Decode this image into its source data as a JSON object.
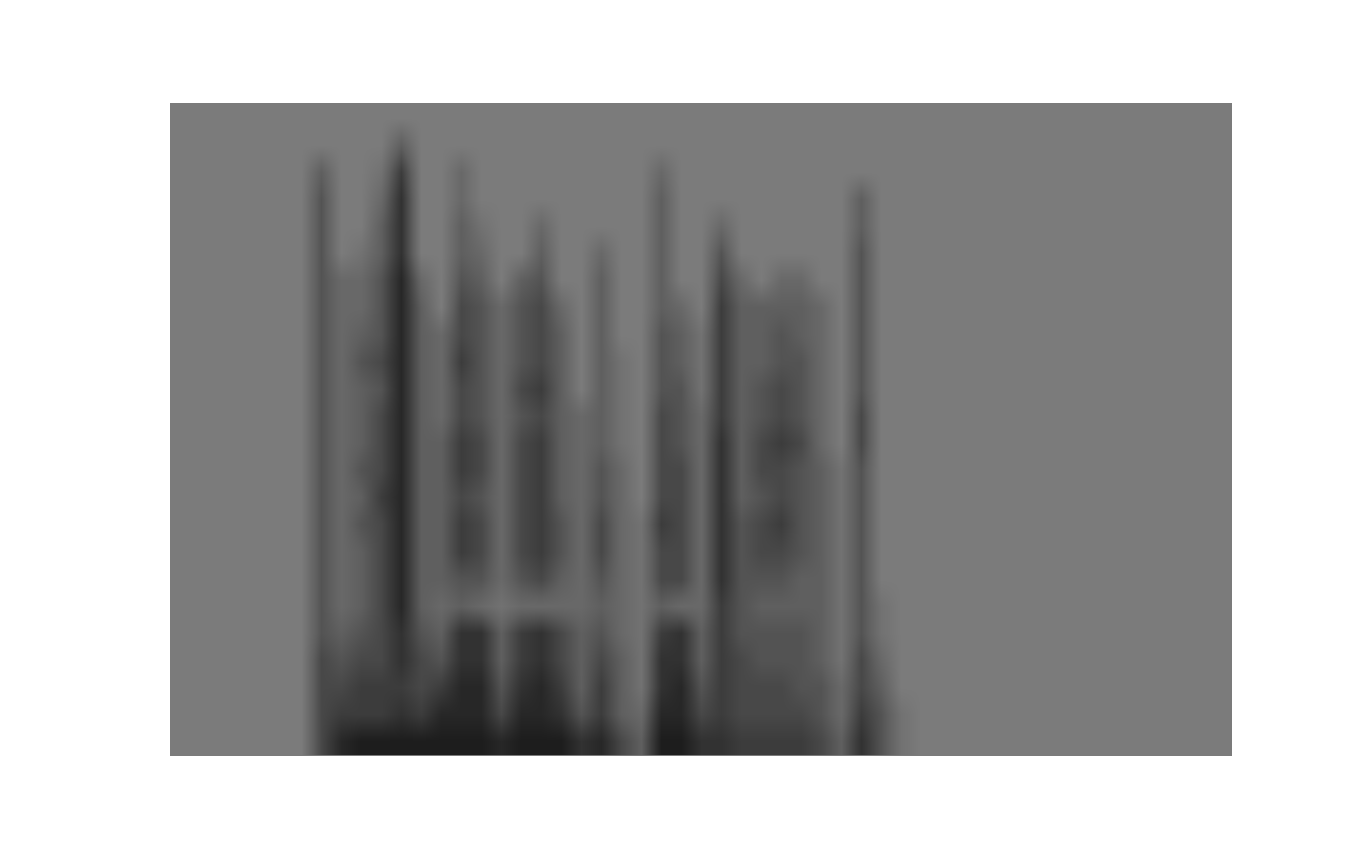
{
  "chart_data": {
    "type": "heatmap",
    "tick_labels": false,
    "xlim": [
      -0.5,
      52.5
    ],
    "ylim": [
      -0.5,
      23.5
    ],
    "zlim": [
      0,
      10
    ],
    "cells": [
      [
        0,
        0,
        0,
        0,
        0,
        0,
        0,
        5,
        8,
        9,
        9,
        9,
        9,
        9,
        9,
        9,
        8,
        9,
        9,
        9,
        7,
        8,
        5,
        3,
        9,
        9,
        7,
        7,
        6,
        6,
        6,
        6,
        5,
        3,
        7,
        4,
        1,
        0,
        0,
        0,
        0,
        0,
        0,
        0,
        0,
        0,
        0,
        0,
        0,
        0,
        0,
        0,
        0
      ],
      [
        0,
        0,
        0,
        0,
        0,
        0,
        0,
        5,
        6,
        6,
        6,
        7,
        6,
        8,
        8,
        8,
        5,
        8,
        8,
        7,
        4,
        6,
        3,
        2,
        8,
        8,
        5,
        6,
        5,
        5,
        5,
        5,
        4,
        2,
        6,
        4,
        1,
        0,
        0,
        0,
        0,
        0,
        0,
        0,
        0,
        0,
        0,
        0,
        0,
        0,
        0,
        0,
        0
      ],
      [
        0,
        0,
        0,
        0,
        0,
        0,
        0,
        5,
        5,
        6,
        6,
        6,
        5,
        6,
        8,
        8,
        4,
        7,
        8,
        6,
        3,
        6,
        3,
        1,
        7,
        8,
        4,
        6,
        5,
        5,
        5,
        4,
        4,
        2,
        5,
        3,
        0,
        0,
        0,
        0,
        0,
        0,
        0,
        0,
        0,
        0,
        0,
        0,
        0,
        0,
        0,
        0,
        0
      ],
      [
        0,
        0,
        0,
        0,
        0,
        0,
        0,
        5,
        4,
        5,
        5,
        7,
        5,
        4,
        7,
        7,
        3,
        6,
        7,
        5,
        3,
        5,
        3,
        1,
        7,
        7,
        3,
        6,
        5,
        4,
        4,
        4,
        3,
        1,
        5,
        2,
        0,
        0,
        0,
        0,
        0,
        0,
        0,
        0,
        0,
        0,
        0,
        0,
        0,
        0,
        0,
        0,
        0
      ],
      [
        0,
        0,
        0,
        0,
        0,
        0,
        0,
        4,
        3,
        4,
        5,
        7,
        4,
        3,
        7,
        7,
        3,
        6,
        7,
        5,
        3,
        4,
        2,
        1,
        6,
        7,
        3,
        6,
        4,
        4,
        4,
        4,
        3,
        1,
        4,
        1,
        0,
        0,
        0,
        0,
        0,
        0,
        0,
        0,
        0,
        0,
        0,
        0,
        0,
        0,
        0,
        0,
        0
      ],
      [
        0,
        0,
        0,
        0,
        0,
        0,
        0,
        4,
        2,
        3,
        5,
        8,
        3,
        2,
        3,
        2,
        1,
        2,
        2,
        2,
        2,
        3,
        2,
        1,
        3,
        2,
        2,
        6,
        4,
        3,
        3,
        3,
        3,
        1,
        4,
        1,
        0,
        0,
        0,
        0,
        0,
        0,
        0,
        0,
        0,
        0,
        0,
        0,
        0,
        0,
        0,
        0,
        0
      ],
      [
        0,
        0,
        0,
        0,
        0,
        0,
        0,
        4,
        2,
        3,
        5,
        8,
        3,
        3,
        4,
        4,
        2,
        4,
        5,
        3,
        2,
        4,
        2,
        1,
        5,
        5,
        2,
        7,
        4,
        4,
        4,
        3,
        3,
        1,
        4,
        0,
        0,
        0,
        0,
        0,
        0,
        0,
        0,
        0,
        0,
        0,
        0,
        0,
        0,
        0,
        0,
        0,
        0
      ],
      [
        0,
        0,
        0,
        0,
        0,
        0,
        0,
        4,
        2,
        3,
        5,
        8,
        3,
        3,
        6,
        5,
        2,
        5,
        6,
        4,
        2,
        5,
        2,
        1,
        5,
        5,
        2,
        7,
        4,
        5,
        5,
        4,
        3,
        1,
        4,
        0,
        0,
        0,
        0,
        0,
        0,
        0,
        0,
        0,
        0,
        0,
        0,
        0,
        0,
        0,
        0,
        0,
        0
      ],
      [
        0,
        0,
        0,
        0,
        0,
        0,
        0,
        4,
        2,
        4,
        5,
        8,
        3,
        3,
        6,
        5,
        2,
        5,
        6,
        4,
        2,
        5,
        2,
        1,
        6,
        5,
        2,
        7,
        4,
        5,
        6,
        4,
        3,
        1,
        4,
        0,
        0,
        0,
        0,
        0,
        0,
        0,
        0,
        0,
        0,
        0,
        0,
        0,
        0,
        0,
        0,
        0,
        0
      ],
      [
        0,
        0,
        0,
        0,
        0,
        0,
        0,
        4,
        2,
        3,
        6,
        8,
        3,
        3,
        5,
        4,
        2,
        5,
        6,
        3,
        2,
        4,
        2,
        0,
        5,
        5,
        2,
        7,
        3,
        4,
        5,
        4,
        3,
        1,
        4,
        0,
        0,
        0,
        0,
        0,
        0,
        0,
        0,
        0,
        0,
        0,
        0,
        0,
        0,
        0,
        0,
        0,
        0
      ],
      [
        0,
        0,
        0,
        0,
        0,
        0,
        0,
        4,
        2,
        4,
        5,
        8,
        3,
        3,
        6,
        5,
        2,
        5,
        6,
        3,
        2,
        4,
        2,
        0,
        5,
        5,
        2,
        7,
        3,
        5,
        5,
        4,
        3,
        1,
        4,
        0,
        0,
        0,
        0,
        0,
        0,
        0,
        0,
        0,
        0,
        0,
        0,
        0,
        0,
        0,
        0,
        0,
        0
      ],
      [
        0,
        0,
        0,
        0,
        0,
        0,
        0,
        4,
        2,
        3,
        5,
        8,
        3,
        3,
        6,
        5,
        2,
        5,
        6,
        3,
        2,
        3,
        1,
        0,
        5,
        4,
        2,
        7,
        3,
        5,
        6,
        5,
        2,
        0,
        5,
        0,
        0,
        0,
        0,
        0,
        0,
        0,
        0,
        0,
        0,
        0,
        0,
        0,
        0,
        0,
        0,
        0,
        0
      ],
      [
        0,
        0,
        0,
        0,
        0,
        0,
        0,
        4,
        2,
        3,
        5,
        8,
        3,
        2,
        5,
        4,
        2,
        4,
        5,
        3,
        2,
        3,
        1,
        0,
        5,
        4,
        2,
        6,
        3,
        4,
        5,
        4,
        2,
        0,
        5,
        0,
        0,
        0,
        0,
        0,
        0,
        0,
        0,
        0,
        0,
        0,
        0,
        0,
        0,
        0,
        0,
        0,
        0
      ],
      [
        0,
        0,
        0,
        0,
        0,
        0,
        0,
        4,
        2,
        3,
        4,
        8,
        3,
        2,
        5,
        4,
        2,
        5,
        6,
        3,
        0,
        3,
        1,
        0,
        4,
        4,
        1,
        6,
        3,
        4,
        5,
        4,
        2,
        0,
        4,
        0,
        0,
        0,
        0,
        0,
        0,
        0,
        0,
        0,
        0,
        0,
        0,
        0,
        0,
        0,
        0,
        0,
        0
      ],
      [
        0,
        0,
        0,
        0,
        0,
        0,
        0,
        4,
        2,
        4,
        5,
        8,
        3,
        2,
        6,
        4,
        2,
        4,
        5,
        3,
        0,
        3,
        1,
        0,
        4,
        3,
        1,
        6,
        3,
        3,
        4,
        4,
        2,
        0,
        4,
        0,
        0,
        0,
        0,
        0,
        0,
        0,
        0,
        0,
        0,
        0,
        0,
        0,
        0,
        0,
        0,
        0,
        0
      ],
      [
        0,
        0,
        0,
        0,
        0,
        0,
        0,
        4,
        2,
        3,
        4,
        8,
        3,
        2,
        5,
        4,
        2,
        4,
        5,
        3,
        0,
        3,
        0,
        0,
        4,
        3,
        1,
        6,
        3,
        3,
        4,
        3,
        2,
        0,
        4,
        0,
        0,
        0,
        0,
        0,
        0,
        0,
        0,
        0,
        0,
        0,
        0,
        0,
        0,
        0,
        0,
        0,
        0
      ],
      [
        0,
        0,
        0,
        0,
        0,
        0,
        0,
        4,
        2,
        2,
        4,
        8,
        3,
        0,
        5,
        4,
        2,
        4,
        5,
        2,
        0,
        3,
        0,
        0,
        3,
        2,
        0,
        6,
        3,
        3,
        3,
        3,
        2,
        0,
        4,
        0,
        0,
        0,
        0,
        0,
        0,
        0,
        0,
        0,
        0,
        0,
        0,
        0,
        0,
        0,
        0,
        0,
        0
      ],
      [
        0,
        0,
        0,
        0,
        0,
        0,
        0,
        4,
        2,
        2,
        4,
        8,
        2,
        0,
        4,
        3,
        0,
        3,
        4,
        0,
        0,
        3,
        0,
        0,
        3,
        0,
        0,
        5,
        2,
        0,
        2,
        2,
        0,
        0,
        4,
        0,
        0,
        0,
        0,
        0,
        0,
        0,
        0,
        0,
        0,
        0,
        0,
        0,
        0,
        0,
        0,
        0,
        0
      ],
      [
        0,
        0,
        0,
        0,
        0,
        0,
        0,
        4,
        0,
        1,
        3,
        7,
        0,
        0,
        3,
        2,
        0,
        0,
        3,
        0,
        0,
        2,
        0,
        0,
        3,
        0,
        0,
        4,
        0,
        0,
        0,
        0,
        0,
        0,
        4,
        0,
        0,
        0,
        0,
        0,
        0,
        0,
        0,
        0,
        0,
        0,
        0,
        0,
        0,
        0,
        0,
        0,
        0
      ],
      [
        0,
        0,
        0,
        0,
        0,
        0,
        0,
        4,
        0,
        0,
        3,
        7,
        0,
        0,
        3,
        1,
        0,
        0,
        2,
        0,
        0,
        0,
        0,
        0,
        3,
        0,
        0,
        2,
        0,
        0,
        0,
        0,
        0,
        0,
        3,
        0,
        0,
        0,
        0,
        0,
        0,
        0,
        0,
        0,
        0,
        0,
        0,
        0,
        0,
        0,
        0,
        0,
        0
      ],
      [
        0,
        0,
        0,
        0,
        0,
        0,
        0,
        4,
        0,
        0,
        2,
        7,
        0,
        0,
        2,
        0,
        0,
        0,
        0,
        0,
        0,
        0,
        0,
        0,
        3,
        0,
        0,
        0,
        0,
        0,
        0,
        0,
        0,
        0,
        3,
        0,
        0,
        0,
        0,
        0,
        0,
        0,
        0,
        0,
        0,
        0,
        0,
        0,
        0,
        0,
        0,
        0,
        0
      ],
      [
        0,
        0,
        0,
        0,
        0,
        0,
        0,
        3,
        0,
        0,
        1,
        6,
        0,
        0,
        2,
        0,
        0,
        0,
        0,
        0,
        0,
        0,
        0,
        0,
        2,
        0,
        0,
        0,
        0,
        0,
        0,
        0,
        0,
        0,
        0,
        0,
        0,
        0,
        0,
        0,
        0,
        0,
        0,
        0,
        0,
        0,
        0,
        0,
        0,
        0,
        0,
        0,
        0
      ],
      [
        0,
        0,
        0,
        0,
        0,
        0,
        0,
        0,
        0,
        0,
        0,
        3,
        0,
        0,
        0,
        0,
        0,
        0,
        0,
        0,
        0,
        0,
        0,
        0,
        0,
        0,
        0,
        0,
        0,
        0,
        0,
        0,
        0,
        0,
        0,
        0,
        0,
        0,
        0,
        0,
        0,
        0,
        0,
        0,
        0,
        0,
        0,
        0,
        0,
        0,
        0,
        0,
        0
      ],
      [
        0,
        0,
        0,
        0,
        0,
        0,
        0,
        0,
        0,
        0,
        0,
        0,
        0,
        0,
        0,
        0,
        0,
        0,
        0,
        0,
        0,
        0,
        0,
        0,
        0,
        0,
        0,
        0,
        0,
        0,
        0,
        0,
        0,
        0,
        0,
        0,
        0,
        0,
        0,
        0,
        0,
        0,
        0,
        0,
        0,
        0,
        0,
        0,
        0,
        0,
        0,
        0,
        0
      ]
    ]
  }
}
